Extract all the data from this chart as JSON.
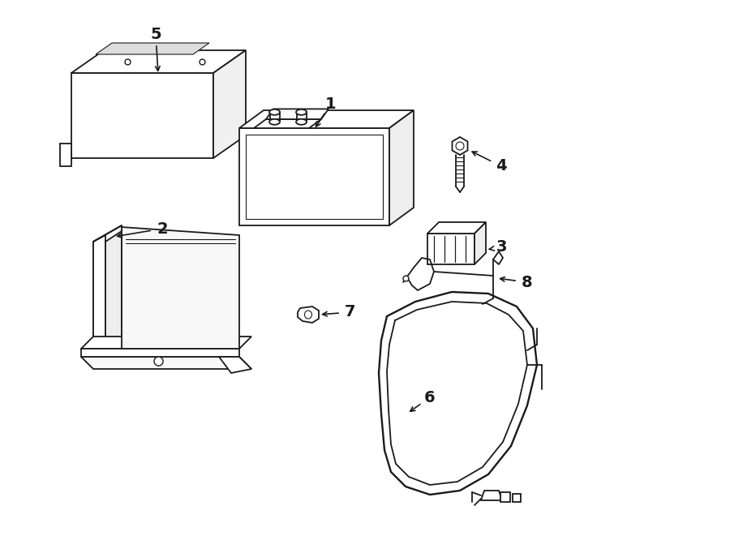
{
  "bg_color": "#ffffff",
  "line_color": "#1a1a1a",
  "lw": 1.3,
  "parts": [
    "1",
    "2",
    "3",
    "4",
    "5",
    "6",
    "7",
    "8"
  ]
}
